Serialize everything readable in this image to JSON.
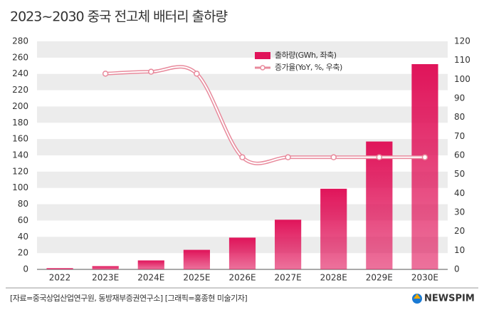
{
  "chart_data": {
    "type": "bar_line",
    "title": "2023~2030 중국 전고체 배터리 출하량",
    "categories": [
      "2022",
      "2023E",
      "2024E",
      "2025E",
      "2026E",
      "2027E",
      "2028E",
      "2029E",
      "2030E"
    ],
    "series": [
      {
        "name": "출하량(GWh, 좌축)",
        "type": "bar",
        "color": "#e0145a",
        "values": [
          1.5,
          4,
          11,
          24,
          39,
          61,
          99,
          157,
          252
        ]
      },
      {
        "name": "증가율(YoY, %, 우축)",
        "type": "line",
        "axis": "y2",
        "color": "#e88a9c",
        "values": [
          null,
          103,
          104,
          103,
          59,
          59,
          59,
          59,
          59
        ]
      }
    ],
    "ylim": [
      0,
      280
    ],
    "yticks": [
      0,
      20,
      40,
      60,
      80,
      100,
      120,
      140,
      160,
      180,
      200,
      220,
      240,
      260,
      280
    ],
    "y2lim": [
      0,
      120
    ],
    "y2ticks": [
      0,
      10,
      20,
      30,
      40,
      50,
      60,
      70,
      80,
      90,
      100,
      110,
      120
    ],
    "grid": "bands",
    "source": "[자료=중국상업산업연구원, 동방재부증권연구소] [그래픽=홍종현 미술기자]",
    "logo": "NEWSPIM"
  }
}
